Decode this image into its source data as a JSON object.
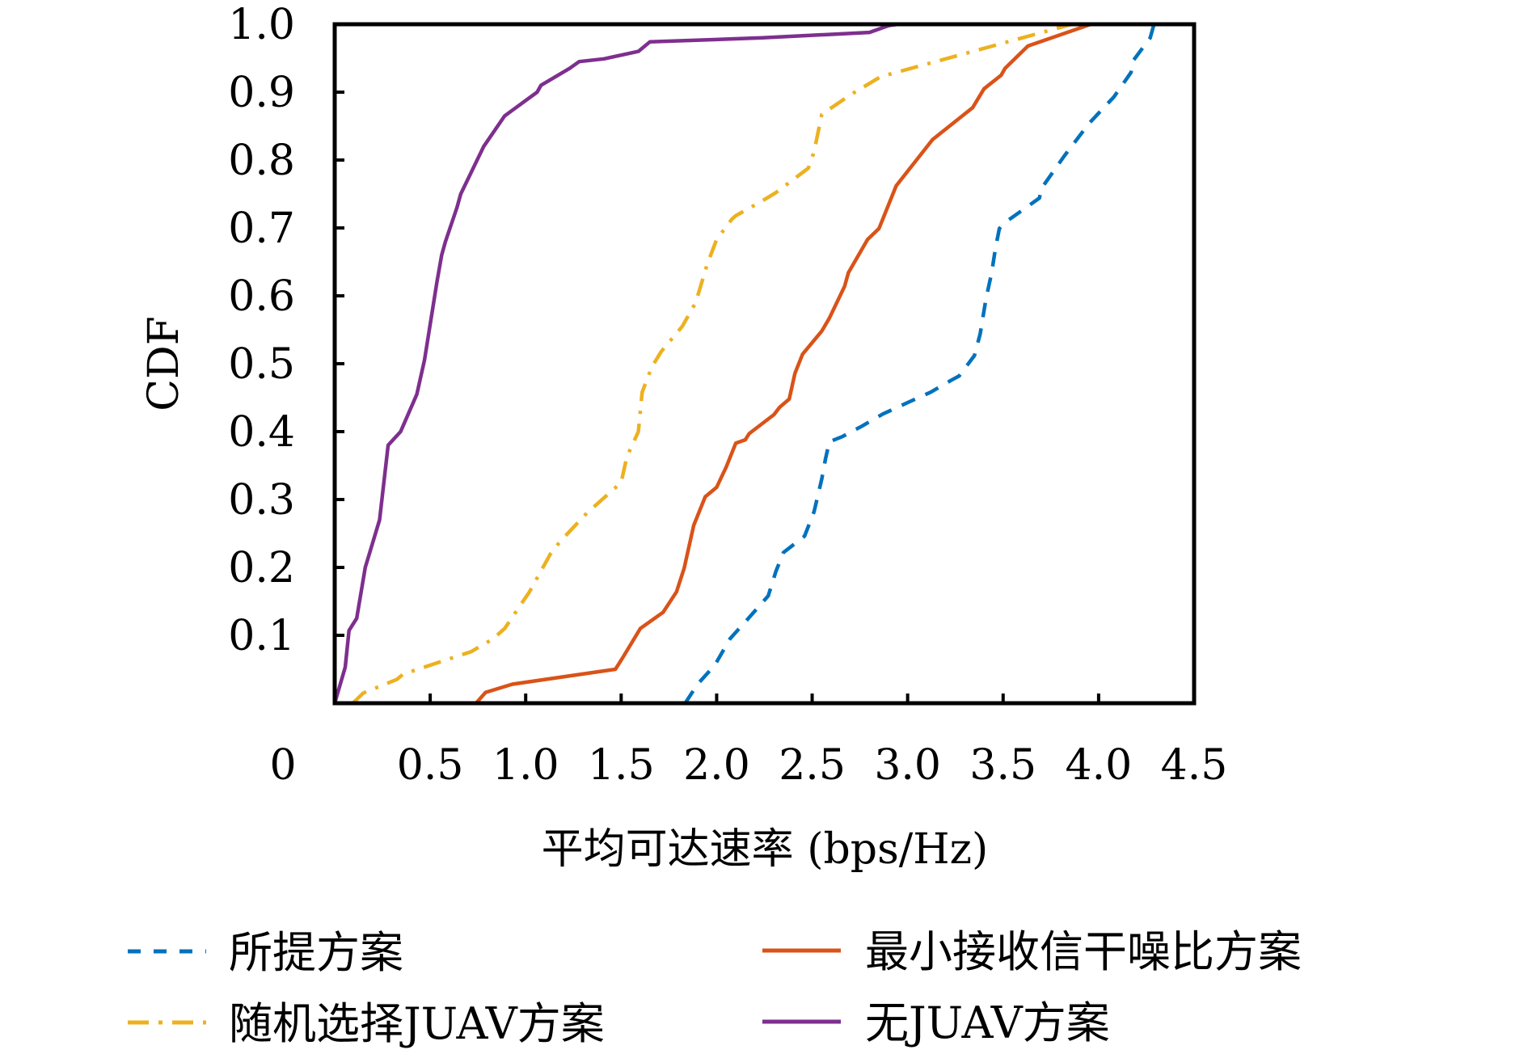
{
  "chart_data": {
    "type": "line",
    "title": "",
    "xlabel": "平均可达速率 (bps/Hz)",
    "ylabel": "CDF",
    "xlim": [
      0,
      4.5
    ],
    "ylim": [
      0,
      1.0
    ],
    "xticks": [
      0.5,
      1.0,
      1.5,
      2.0,
      2.5,
      3.0,
      3.5,
      4.0,
      4.5
    ],
    "xtick_labels": [
      "0.5",
      "1.0",
      "1.5",
      "2.0",
      "2.5",
      "3.0",
      "3.5",
      "4.0",
      "4.5"
    ],
    "origin_label": "0",
    "yticks": [
      0.1,
      0.2,
      0.3,
      0.4,
      0.5,
      0.6,
      0.7,
      0.8,
      0.9,
      1.0
    ],
    "ytick_labels": [
      "0.1",
      "0.2",
      "0.3",
      "0.4",
      "0.5",
      "0.6",
      "0.7",
      "0.8",
      "0.9",
      "1.0"
    ],
    "grid": false,
    "legend_position": "bottom",
    "series": [
      {
        "name": "所提方案",
        "color": "#0072BD",
        "style": "dashed",
        "x": [
          1.835,
          1.9,
          1.99,
          2.07,
          2.16,
          2.27,
          2.31,
          2.35,
          2.46,
          2.51,
          2.55,
          2.57,
          2.59,
          2.66,
          2.76,
          2.87,
          3.01,
          3.12,
          3.23,
          3.27,
          3.35,
          3.38,
          3.41,
          3.44,
          3.46,
          3.48,
          3.51,
          3.69,
          3.7,
          3.82,
          3.95,
          4.08,
          4.17,
          4.18,
          4.27,
          4.29
        ],
        "y": [
          0.0,
          0.028,
          0.056,
          0.095,
          0.123,
          0.158,
          0.194,
          0.222,
          0.246,
          0.282,
          0.33,
          0.36,
          0.385,
          0.393,
          0.408,
          0.426,
          0.444,
          0.458,
          0.476,
          0.482,
          0.512,
          0.544,
          0.595,
          0.634,
          0.67,
          0.699,
          0.708,
          0.744,
          0.758,
          0.806,
          0.854,
          0.893,
          0.929,
          0.946,
          0.98,
          1.0
        ]
      },
      {
        "name": "最小接收信干噪比方案",
        "color": "#D95319",
        "style": "solid",
        "x": [
          0.74,
          0.79,
          0.93,
          1.47,
          1.51,
          1.6,
          1.72,
          1.79,
          1.83,
          1.88,
          1.94,
          2.0,
          2.05,
          2.1,
          2.15,
          2.17,
          2.3,
          2.33,
          2.38,
          2.41,
          2.45,
          2.55,
          2.59,
          2.67,
          2.69,
          2.79,
          2.85,
          2.94,
          3.13,
          3.34,
          3.4,
          3.49,
          3.51,
          3.63,
          3.65,
          3.96
        ],
        "y": [
          0.0,
          0.016,
          0.028,
          0.05,
          0.068,
          0.11,
          0.134,
          0.164,
          0.199,
          0.262,
          0.304,
          0.318,
          0.348,
          0.383,
          0.388,
          0.397,
          0.425,
          0.436,
          0.448,
          0.486,
          0.514,
          0.548,
          0.567,
          0.614,
          0.634,
          0.683,
          0.699,
          0.762,
          0.83,
          0.877,
          0.905,
          0.925,
          0.935,
          0.968,
          0.97,
          1.0
        ]
      },
      {
        "name": "随机选择JUAV方案",
        "color": "#EDB120",
        "style": "dashdot",
        "x": [
          0.095,
          0.15,
          0.325,
          0.36,
          0.715,
          0.83,
          0.89,
          1.02,
          1.13,
          1.18,
          1.32,
          1.44,
          1.5,
          1.53,
          1.59,
          1.61,
          1.66,
          1.71,
          1.82,
          1.89,
          1.95,
          2.0,
          2.08,
          2.1,
          2.24,
          2.31,
          2.48,
          2.51,
          2.55,
          2.58,
          2.7,
          2.86,
          2.9,
          3.86
        ],
        "y": [
          0.0,
          0.015,
          0.035,
          0.043,
          0.076,
          0.095,
          0.11,
          0.164,
          0.22,
          0.238,
          0.28,
          0.31,
          0.325,
          0.363,
          0.4,
          0.458,
          0.495,
          0.518,
          0.555,
          0.59,
          0.646,
          0.683,
          0.713,
          0.718,
          0.74,
          0.752,
          0.788,
          0.812,
          0.867,
          0.873,
          0.896,
          0.923,
          0.926,
          1.0
        ]
      },
      {
        "name": "无JUAV方案",
        "color": "#7E2F8E",
        "style": "solid",
        "x": [
          0.0,
          0.055,
          0.075,
          0.115,
          0.16,
          0.235,
          0.28,
          0.345,
          0.43,
          0.47,
          0.535,
          0.56,
          0.58,
          0.64,
          0.66,
          0.78,
          0.89,
          1.06,
          1.08,
          1.23,
          1.28,
          1.41,
          1.59,
          1.65,
          2.24,
          2.8,
          2.9,
          2.95
        ],
        "y": [
          0.0,
          0.053,
          0.107,
          0.125,
          0.2,
          0.27,
          0.38,
          0.4,
          0.455,
          0.505,
          0.62,
          0.66,
          0.68,
          0.73,
          0.75,
          0.82,
          0.865,
          0.9,
          0.91,
          0.935,
          0.945,
          0.949,
          0.96,
          0.974,
          0.98,
          0.988,
          0.998,
          1.0
        ]
      }
    ]
  }
}
